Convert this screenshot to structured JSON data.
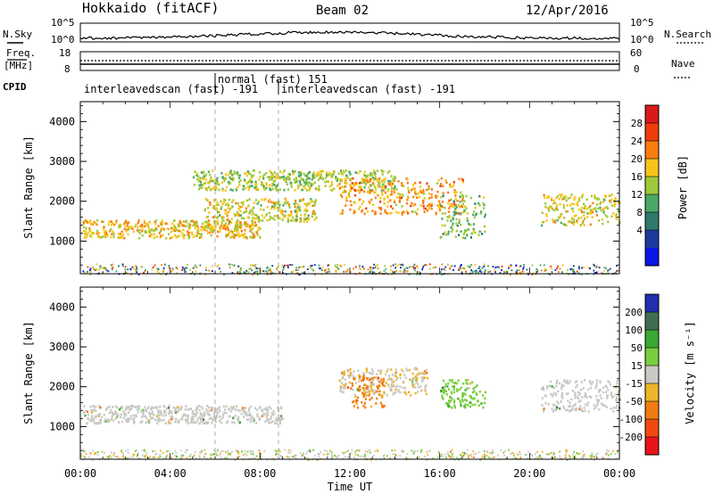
{
  "header": {
    "station": "Hokkaido (fitACF)",
    "beam": "Beam 02",
    "date": "12/Apr/2016"
  },
  "strip_labels": {
    "nsky": "N.Sky",
    "nsky_top": "10^5",
    "nsky_bottom": "10^0",
    "nsearch": "N.Search",
    "nsearch_top": "10^5",
    "nsearch_bottom": "10^0",
    "freq_line1": "Freq.",
    "freq_line2": "[MHz]",
    "freq_top": "18",
    "freq_bottom": "8",
    "nave": "Nave",
    "nave_top": "60",
    "nave_bottom": "0",
    "cpid": "CPID"
  },
  "cpid_segments": [
    {
      "label": "interleavedscan (fast) -191",
      "start_hour": 0
    },
    {
      "label": "normal (fast) 151",
      "start_hour": 6
    },
    {
      "label": "interleavedscan (fast) -191",
      "start_hour": 8.8
    }
  ],
  "colorbars": {
    "power": {
      "label": "Power [dB]",
      "ticks": [
        "28",
        "24",
        "20",
        "16",
        "12",
        "8",
        "4"
      ],
      "colors": [
        "#d91a1a",
        "#f03c0c",
        "#fa7d0e",
        "#f7c51a",
        "#9fc93a",
        "#4aa867",
        "#2f7a6b",
        "#1b3a9c",
        "#0a15e6"
      ]
    },
    "velocity": {
      "label": "Velocity [m s⁻¹]",
      "ticks": [
        "200",
        "100",
        "50",
        "15",
        "-15",
        "-50",
        "-100",
        "-200"
      ],
      "colors": [
        "#1f2fae",
        "#3f6f50",
        "#3aa832",
        "#79cf3d",
        "#c9c9c5",
        "#f0b42a",
        "#f07d12",
        "#f04a10",
        "#e8141c"
      ]
    }
  },
  "chart_data": [
    {
      "type": "heatmap",
      "name": "Power",
      "xlabel": "Time UT",
      "ylabel": "Slant Range [km]",
      "x_ticks": [
        "00:00",
        "04:00",
        "08:00",
        "12:00",
        "16:00",
        "20:00",
        "00:00"
      ],
      "y_ticks": [
        1000,
        2000,
        3000,
        4000
      ],
      "xlim_hours": [
        0,
        24
      ],
      "ylim_km": [
        180,
        4500
      ],
      "colorbar_range_db": [
        0,
        32
      ],
      "echo_bands": [
        {
          "from_hour": 0.1,
          "to_hour": 8.0,
          "range_km": [
            1100,
            1550
          ],
          "power_db": 20
        },
        {
          "from_hour": 5.5,
          "to_hour": 10.5,
          "range_km": [
            1500,
            2100
          ],
          "power_db": 18
        },
        {
          "from_hour": 5.0,
          "to_hour": 14.0,
          "range_km": [
            2300,
            2800
          ],
          "power_db": 16
        },
        {
          "from_hour": 11.5,
          "to_hour": 17.0,
          "range_km": [
            1700,
            2600
          ],
          "power_db": 22
        },
        {
          "from_hour": 16.0,
          "to_hour": 18.0,
          "range_km": [
            1100,
            2200
          ],
          "power_db": 14
        },
        {
          "from_hour": 20.5,
          "to_hour": 24.0,
          "range_km": [
            1400,
            2200
          ],
          "power_db": 18
        }
      ]
    },
    {
      "type": "heatmap",
      "name": "Velocity",
      "xlabel": "Time UT",
      "ylabel": "Slant Range [km]",
      "x_ticks": [
        "00:00",
        "04:00",
        "08:00",
        "12:00",
        "16:00",
        "20:00",
        "00:00"
      ],
      "y_ticks": [
        1000,
        2000,
        3000,
        4000
      ],
      "xlim_hours": [
        0,
        24
      ],
      "ylim_km": [
        180,
        4500
      ],
      "colorbar_range_ms": [
        -200,
        200
      ],
      "echo_bands": [
        {
          "from_hour": 0.1,
          "to_hour": 9.0,
          "range_km": [
            1100,
            1550
          ],
          "velocity_ms": 0
        },
        {
          "from_hour": 11.5,
          "to_hour": 15.5,
          "range_km": [
            1800,
            2500
          ],
          "velocity_ms": -10
        },
        {
          "from_hour": 12.0,
          "to_hour": 13.5,
          "range_km": [
            1500,
            2300
          ],
          "velocity_ms": -60
        },
        {
          "from_hour": 16.0,
          "to_hour": 18.0,
          "range_km": [
            1500,
            2200
          ],
          "velocity_ms": 40
        },
        {
          "from_hour": 20.5,
          "to_hour": 24.0,
          "range_km": [
            1400,
            2200
          ],
          "velocity_ms": 0
        }
      ]
    }
  ]
}
